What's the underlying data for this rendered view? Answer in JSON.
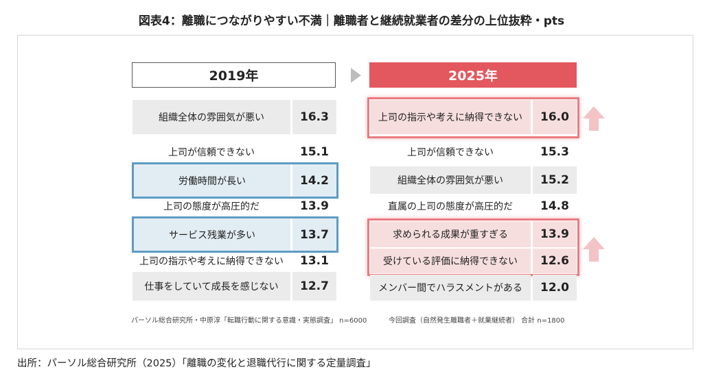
{
  "title": "図表4：離職につながりやすい不満｜離職者と継続就業者の差分の上位抜粋・pts",
  "source": "出所：パーソル総合研究所（2025）「離職の変化と退職代行に関する定量調査」",
  "chart_data": [
    {
      "type": "table",
      "title": "2019年",
      "rows": [
        {
          "label": "組織全体の雰囲気が悪い",
          "value": "16.3"
        },
        {
          "label": "上司が信頼できない",
          "value": "15.1"
        },
        {
          "label": "労働時間が長い",
          "value": "14.2"
        },
        {
          "label": "上司の態度が高圧的だ",
          "value": "13.9"
        },
        {
          "label": "サービス残業が多い",
          "value": "13.7"
        },
        {
          "label": "上司の指示や考えに納得できない",
          "value": "13.1"
        },
        {
          "label": "仕事をしていて成長を感じない",
          "value": "12.7"
        }
      ],
      "highlighted": [
        "労働時間が長い",
        "サービス残業が多い"
      ],
      "highlight_color": "#5e9cc4",
      "note": "パーソル総合研究所・中原淳「転職行動に関する意識・実態調査」 n=6000"
    },
    {
      "type": "table",
      "title": "2025年",
      "rows": [
        {
          "label": "上司の指示や考えに納得できない",
          "value": "16.0"
        },
        {
          "label": "上司が信頼できない",
          "value": "15.3"
        },
        {
          "label": "組織全体の雰囲気が悪い",
          "value": "15.2"
        },
        {
          "label": "直属の上司の態度が高圧的だ",
          "value": "14.8"
        },
        {
          "label": "求められる成果が重すぎる",
          "value": "13.9"
        },
        {
          "label": "受けている評価に納得できない",
          "value": "12.6"
        },
        {
          "label": "メンバー間でハラスメントがある",
          "value": "12.0"
        }
      ],
      "highlighted": [
        "上司の指示や考えに納得できない",
        "求められる成果が重すぎる",
        "受けている評価に納得できない"
      ],
      "highlight_color": "#ea7b80",
      "header_color": "#e2585e",
      "note": "今回調査（自然発生離職者＋就業継続者） 合計 n=1800"
    }
  ],
  "icons": {
    "header_arrow": "right-triangle-icon",
    "increase_arrow": "up-arrow-icon"
  }
}
